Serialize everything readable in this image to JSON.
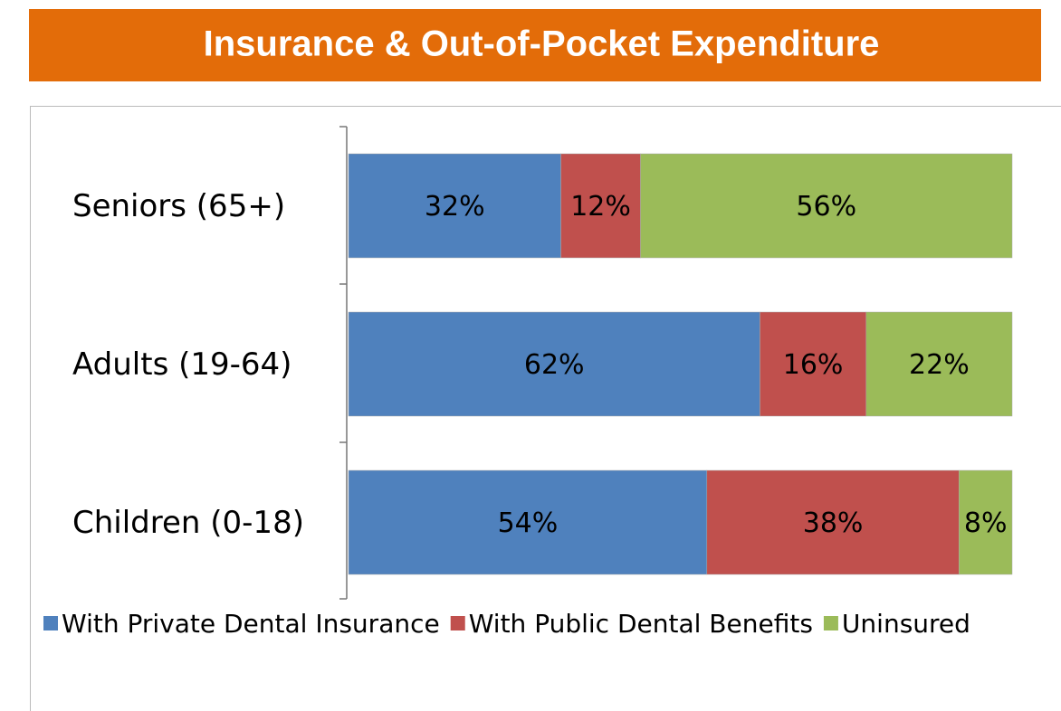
{
  "chart_data": {
    "type": "bar",
    "orientation": "horizontal",
    "stacked": true,
    "title": "Insurance & Out-of-Pocket Expenditure",
    "categories": [
      "Seniors (65+)",
      "Adults (19-64)",
      "Children (0-18)"
    ],
    "series": [
      {
        "name": "With Private Dental Insurance",
        "color": "#4f81bd",
        "values": [
          32,
          62,
          54
        ],
        "value_labels": [
          "32%",
          "62%",
          "54%"
        ]
      },
      {
        "name": "With Public Dental Benefits",
        "color": "#c0504d",
        "values": [
          12,
          16,
          38
        ],
        "value_labels": [
          "12%",
          "16%",
          "38%"
        ]
      },
      {
        "name": "Uninsured",
        "color": "#9bbb59",
        "values": [
          56,
          22,
          8
        ],
        "value_labels": [
          "56%",
          "22%",
          "8%"
        ]
      }
    ],
    "xlim": [
      0,
      100
    ],
    "legend": "bottom"
  }
}
